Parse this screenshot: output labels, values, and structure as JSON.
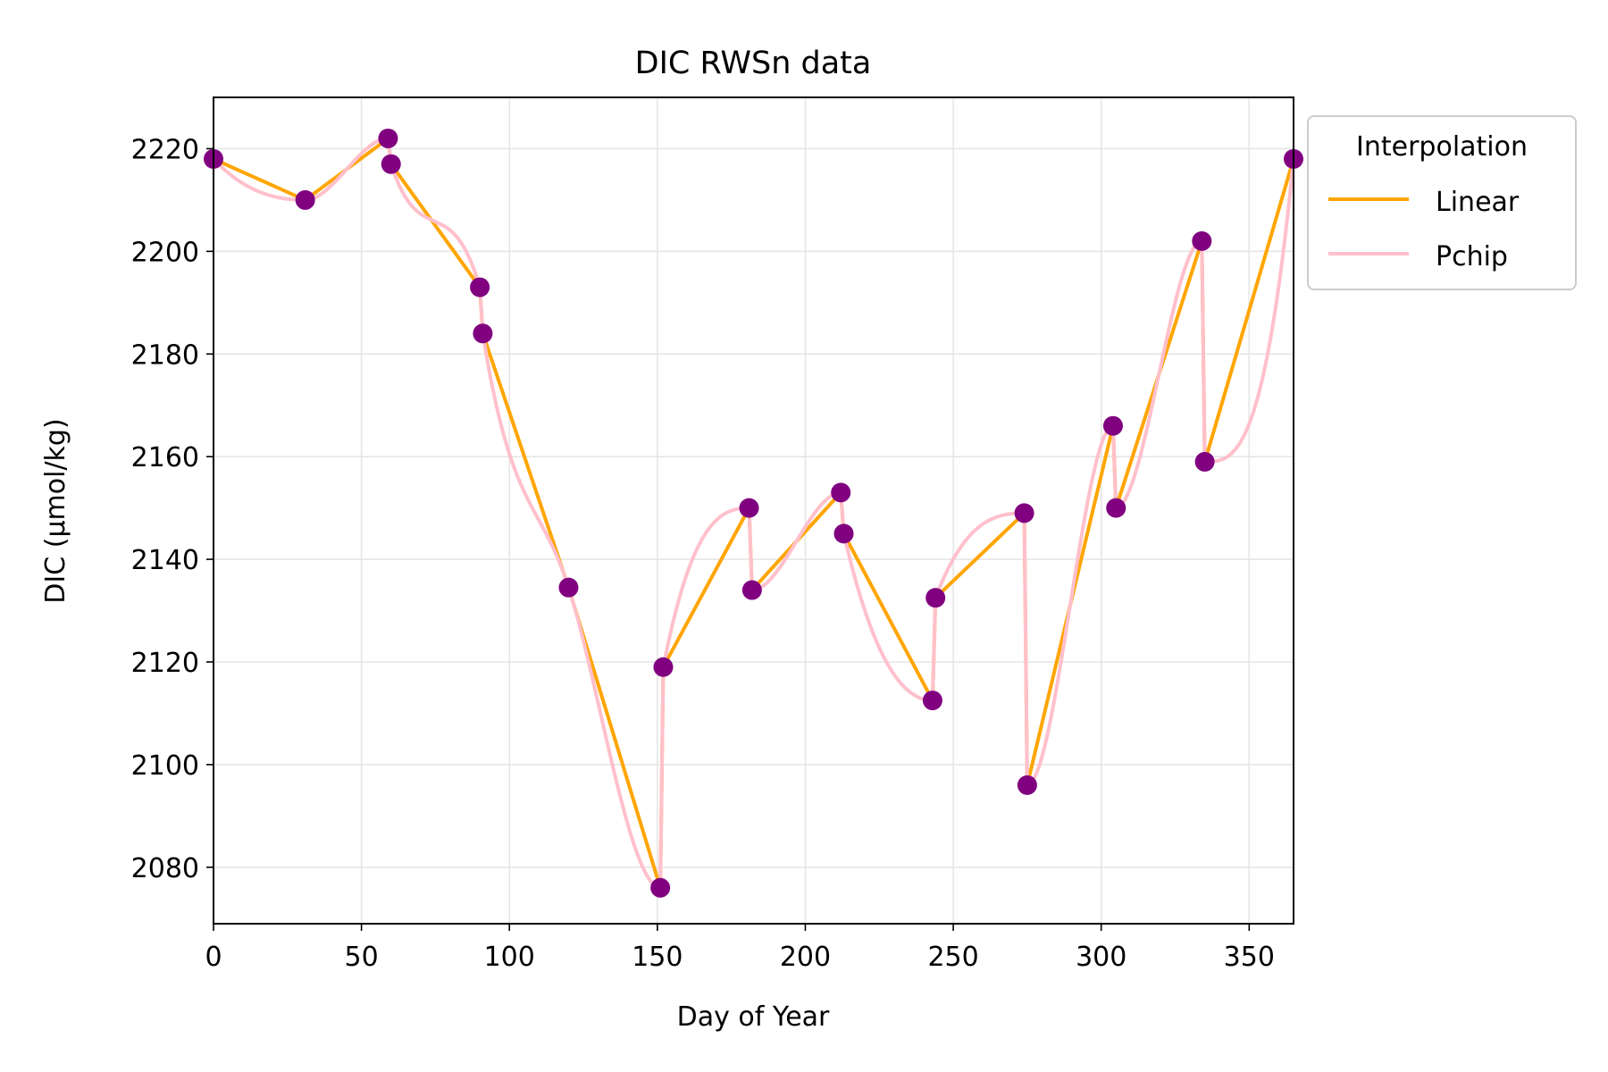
{
  "chart_data": {
    "type": "line",
    "title": "DIC RWSn data",
    "xlabel": "Day of Year",
    "ylabel": "DIC (µmol/kg)",
    "xlim": [
      0,
      365
    ],
    "ylim": [
      2069,
      2230
    ],
    "xticks": [
      0,
      50,
      100,
      150,
      200,
      250,
      300,
      350
    ],
    "yticks": [
      2080,
      2100,
      2120,
      2140,
      2160,
      2180,
      2200,
      2220
    ],
    "grid": true,
    "legend": {
      "title": "Interpolation",
      "placement": "outside-top-right"
    },
    "points": {
      "color": "#800080",
      "x": [
        0,
        31,
        59,
        60,
        90,
        91,
        120,
        151,
        152,
        181,
        182,
        212,
        213,
        243,
        244,
        274,
        275,
        304,
        305,
        334,
        335,
        365
      ],
      "y": [
        2218,
        2210,
        2222,
        2217,
        2193,
        2184,
        2134.5,
        2076,
        2119,
        2150,
        2134,
        2153,
        2145,
        2112.5,
        2132.5,
        2149,
        2096,
        2166,
        2150,
        2202,
        2159,
        2218
      ]
    },
    "series": [
      {
        "name": "Linear",
        "color": "#FFA500",
        "x": [
          0,
          31,
          59,
          60,
          90,
          91,
          120,
          151,
          152,
          181,
          182,
          212,
          213,
          243,
          244,
          274,
          275,
          304,
          305,
          334,
          335,
          365
        ],
        "y": [
          2218,
          2210,
          2222,
          2217,
          2193,
          2184,
          2134.5,
          2076,
          2119,
          2150,
          2134,
          2153,
          2145,
          2112.5,
          2132.5,
          2149,
          2096,
          2166,
          2150,
          2202,
          2159,
          2218
        ]
      },
      {
        "name": "Pchip",
        "color": "#FFC0CB",
        "x": [
          0,
          31,
          59,
          60,
          90,
          91,
          120,
          151,
          152,
          181,
          182,
          212,
          213,
          243,
          244,
          274,
          275,
          304,
          305,
          334,
          335,
          365
        ],
        "y": [
          2218,
          2210,
          2222,
          2217,
          2193,
          2184,
          2134.5,
          2076,
          2119,
          2150,
          2134,
          2153,
          2145,
          2112.5,
          2132.5,
          2149,
          2096,
          2166,
          2150,
          2202,
          2159,
          2218
        ]
      }
    ]
  }
}
